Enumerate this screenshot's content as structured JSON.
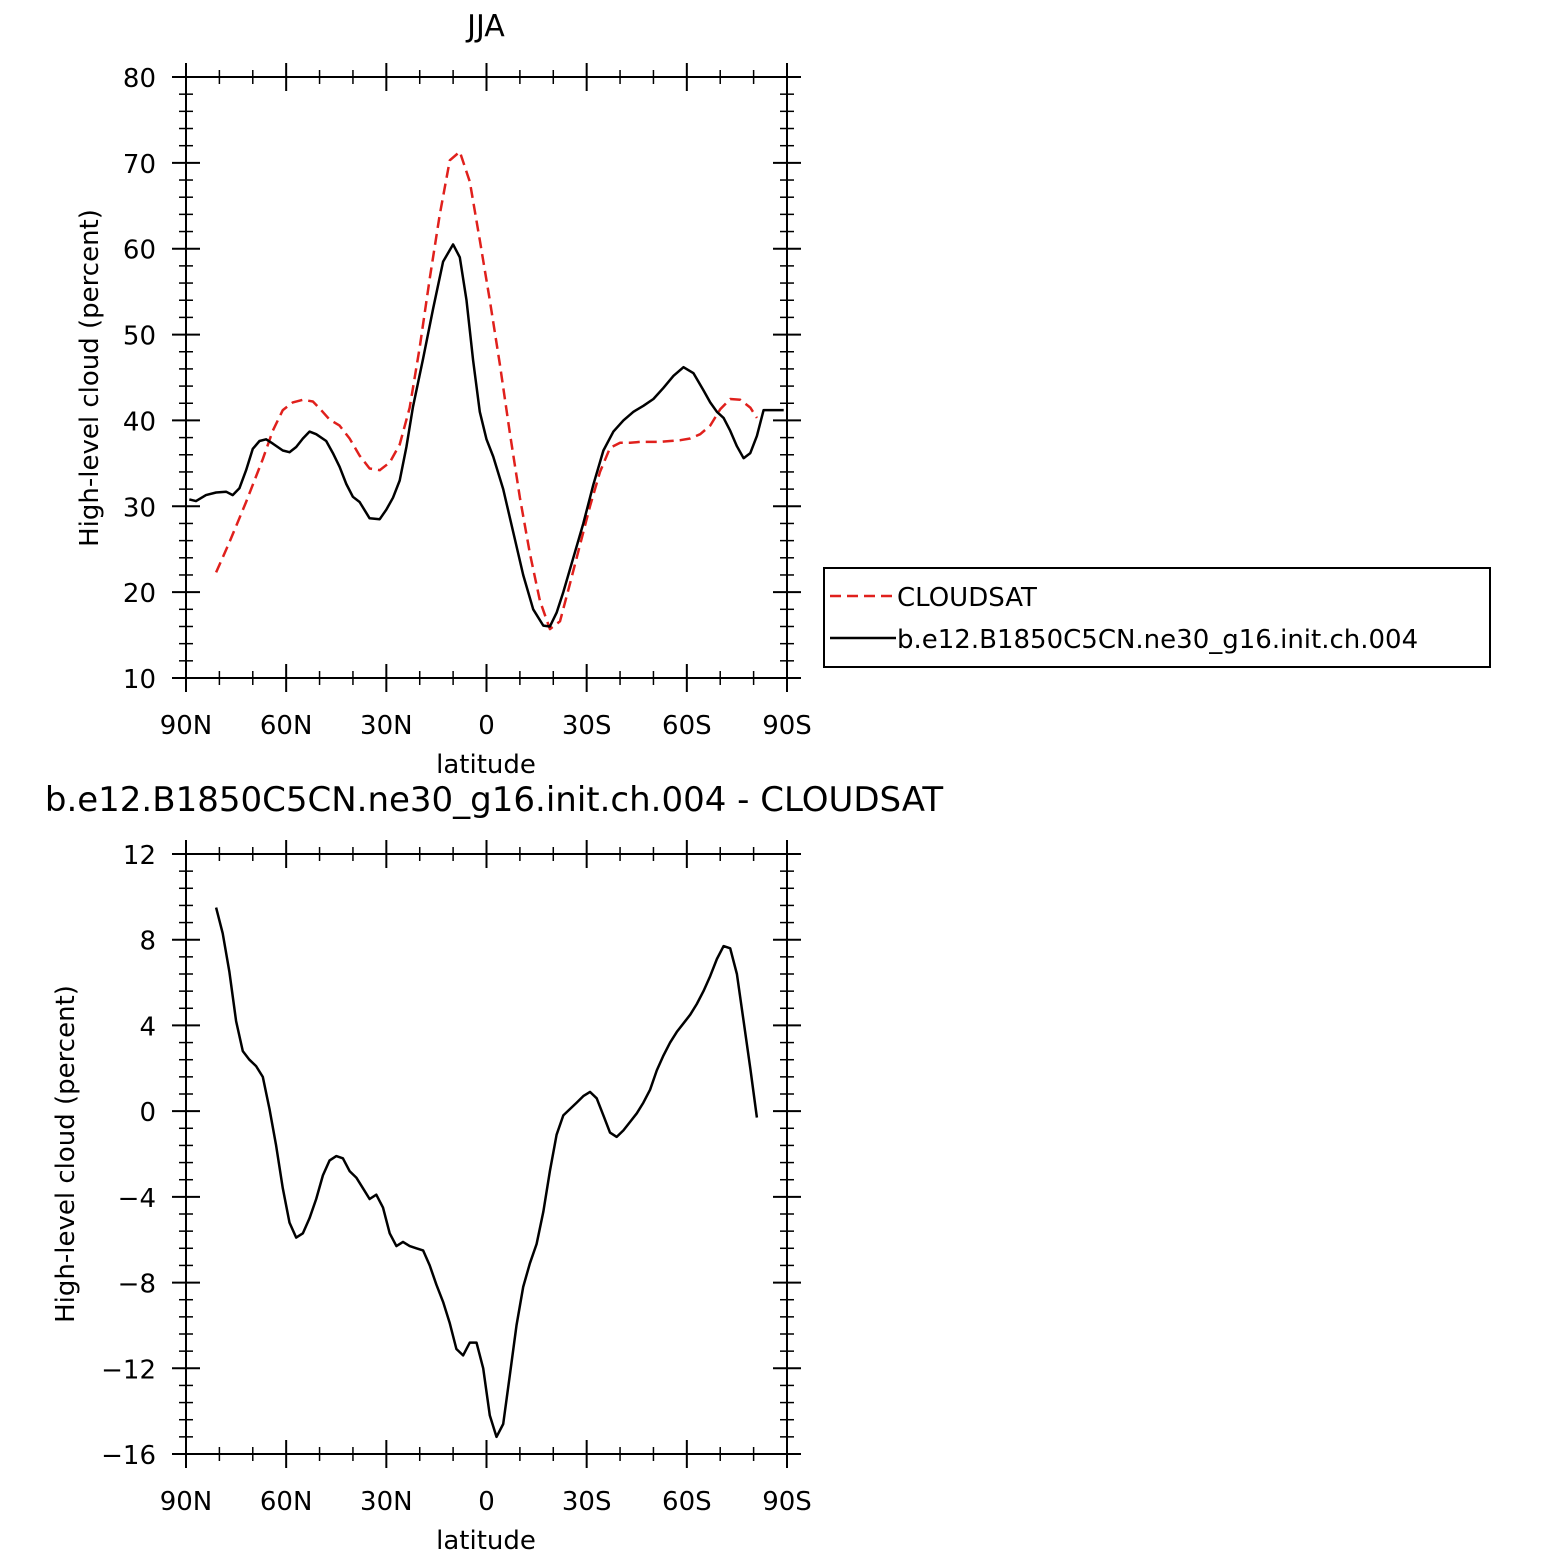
{
  "chart_data": [
    {
      "type": "line",
      "title": "JJA",
      "xlabel": "latitude",
      "ylabel": "High-level cloud (percent)",
      "xlim": [
        90,
        -90
      ],
      "ylim": [
        10,
        80
      ],
      "y_ticks": [
        10,
        20,
        30,
        40,
        50,
        60,
        70,
        80
      ],
      "x_ticks": [
        {
          "value": 90,
          "label": "90N"
        },
        {
          "value": 60,
          "label": "60N"
        },
        {
          "value": 30,
          "label": "30N"
        },
        {
          "value": 0,
          "label": "0"
        },
        {
          "value": -30,
          "label": "30S"
        },
        {
          "value": -60,
          "label": "60S"
        },
        {
          "value": -90,
          "label": "90S"
        }
      ],
      "legend_position": "right",
      "series": [
        {
          "name": "CLOUDSAT",
          "color": "#e0201c",
          "style": "dashed",
          "x": [
            81,
            77,
            72,
            67,
            64,
            61,
            58,
            55,
            52,
            50,
            47,
            44,
            41,
            38,
            35,
            32,
            29,
            26,
            23,
            20,
            17,
            14,
            11,
            8,
            5,
            2,
            -1,
            -4,
            -7,
            -10,
            -13,
            -16,
            -19,
            -22,
            -25,
            -28,
            -31,
            -34,
            -37,
            -40,
            -43,
            -46,
            -49,
            -52,
            -55,
            -58,
            -61,
            -64,
            -67,
            -70,
            -73,
            -76,
            -79,
            -81
          ],
          "y": [
            22.3,
            25.8,
            30.5,
            35.5,
            38.8,
            41.2,
            42.1,
            42.4,
            42.2,
            41.4,
            40.1,
            39.4,
            37.9,
            35.9,
            34.4,
            34.2,
            35.1,
            37.2,
            41.5,
            48.5,
            56.5,
            64.0,
            70.3,
            71.3,
            67.8,
            61.0,
            54.0,
            46.5,
            38.5,
            31.0,
            24.5,
            19.0,
            15.7,
            16.6,
            21.0,
            25.5,
            30.0,
            34.0,
            36.8,
            37.4,
            37.4,
            37.5,
            37.5,
            37.5,
            37.6,
            37.7,
            37.9,
            38.4,
            39.4,
            41.3,
            42.5,
            42.4,
            41.5,
            40.3
          ]
        },
        {
          "name": "b.e12.B1850C5CN.ne30_g16.init.ch.004",
          "color": "#000000",
          "style": "solid",
          "x": [
            89,
            87,
            84,
            81,
            78,
            76,
            74,
            72,
            70,
            68,
            66,
            64,
            61,
            59,
            57,
            55,
            53,
            51,
            48,
            46,
            44,
            42,
            40,
            38,
            35,
            32,
            30,
            28,
            26,
            24,
            22,
            19,
            16,
            13,
            10,
            8,
            6,
            4,
            2,
            0,
            -2,
            -5,
            -8,
            -11,
            -14,
            -17,
            -19,
            -21,
            -23,
            -26,
            -29,
            -32,
            -35,
            -38,
            -41,
            -44,
            -47,
            -50,
            -53,
            -56,
            -59,
            -62,
            -65,
            -67,
            -69,
            -71,
            -73,
            -75,
            -77,
            -79,
            -81,
            -83,
            -85,
            -87,
            -89
          ],
          "y": [
            30.8,
            30.6,
            31.3,
            31.6,
            31.7,
            31.3,
            32.1,
            34.2,
            36.7,
            37.6,
            37.8,
            37.3,
            36.5,
            36.3,
            36.9,
            37.9,
            38.7,
            38.4,
            37.6,
            36.2,
            34.6,
            32.6,
            31.1,
            30.5,
            28.6,
            28.5,
            29.6,
            31.0,
            33.0,
            36.9,
            41.6,
            47.2,
            53.0,
            58.5,
            60.5,
            59.0,
            54.0,
            47.0,
            41.0,
            37.8,
            35.8,
            32.0,
            27.0,
            22.0,
            18.0,
            16.1,
            16.0,
            17.6,
            20.0,
            24.0,
            28.0,
            32.5,
            36.5,
            38.7,
            40.0,
            41.0,
            41.7,
            42.5,
            43.8,
            45.2,
            46.2,
            45.5,
            43.5,
            42.1,
            41.0,
            40.3,
            38.8,
            37.0,
            35.6,
            36.2,
            38.2,
            41.2,
            41.2,
            41.2,
            41.2
          ]
        }
      ]
    },
    {
      "type": "line",
      "title": "b.e12.B1850C5CN.ne30_g16.init.ch.004 - CLOUDSAT",
      "xlabel": "latitude",
      "ylabel": "High-level cloud (percent)",
      "xlim": [
        90,
        -90
      ],
      "ylim": [
        -16,
        12
      ],
      "y_ticks": [
        -16,
        -12,
        -8,
        -4,
        0,
        4,
        8,
        12
      ],
      "x_ticks": [
        {
          "value": 90,
          "label": "90N"
        },
        {
          "value": 60,
          "label": "60N"
        },
        {
          "value": 30,
          "label": "30N"
        },
        {
          "value": 0,
          "label": "0"
        },
        {
          "value": -30,
          "label": "30S"
        },
        {
          "value": -60,
          "label": "60S"
        },
        {
          "value": -90,
          "label": "90S"
        }
      ],
      "series": [
        {
          "color": "#000000",
          "style": "solid",
          "x": [
            81,
            79,
            77,
            75,
            73,
            71,
            69,
            67,
            65,
            63,
            61,
            59,
            57,
            55,
            53,
            51,
            49,
            47,
            45,
            43,
            41,
            39,
            37,
            35,
            33,
            31,
            29,
            27,
            25,
            23,
            21,
            19,
            17,
            15,
            13,
            11,
            9,
            7,
            5,
            3,
            1,
            -1,
            -3,
            -5,
            -7,
            -9,
            -11,
            -13,
            -15,
            -17,
            -19,
            -21,
            -23,
            -25,
            -27,
            -29,
            -31,
            -33,
            -35,
            -37,
            -39,
            -41,
            -43,
            -45,
            -47,
            -49,
            -51,
            -53,
            -55,
            -57,
            -59,
            -61,
            -63,
            -65,
            -67,
            -69,
            -71,
            -73,
            -75,
            -77,
            -79,
            -81
          ],
          "y": [
            9.5,
            8.3,
            6.5,
            4.2,
            2.8,
            2.4,
            2.1,
            1.6,
            0.1,
            -1.6,
            -3.6,
            -5.2,
            -5.9,
            -5.7,
            -5.0,
            -4.1,
            -3.0,
            -2.3,
            -2.1,
            -2.2,
            -2.8,
            -3.1,
            -3.6,
            -4.1,
            -3.9,
            -4.5,
            -5.7,
            -6.3,
            -6.1,
            -6.3,
            -6.4,
            -6.5,
            -7.2,
            -8.1,
            -8.9,
            -9.9,
            -11.1,
            -11.4,
            -10.8,
            -10.8,
            -12.0,
            -14.2,
            -15.2,
            -14.6,
            -12.3,
            -10.0,
            -8.2,
            -7.1,
            -6.2,
            -4.7,
            -2.8,
            -1.1,
            -0.2,
            0.1,
            0.4,
            0.7,
            0.9,
            0.6,
            -0.2,
            -1.0,
            -1.2,
            -0.9,
            -0.5,
            -0.1,
            0.4,
            1.0,
            1.9,
            2.6,
            3.2,
            3.7,
            4.1,
            4.5,
            5.0,
            5.6,
            6.3,
            7.1,
            7.7,
            7.6,
            6.4,
            4.2,
            2.0,
            -0.3
          ]
        }
      ]
    }
  ]
}
